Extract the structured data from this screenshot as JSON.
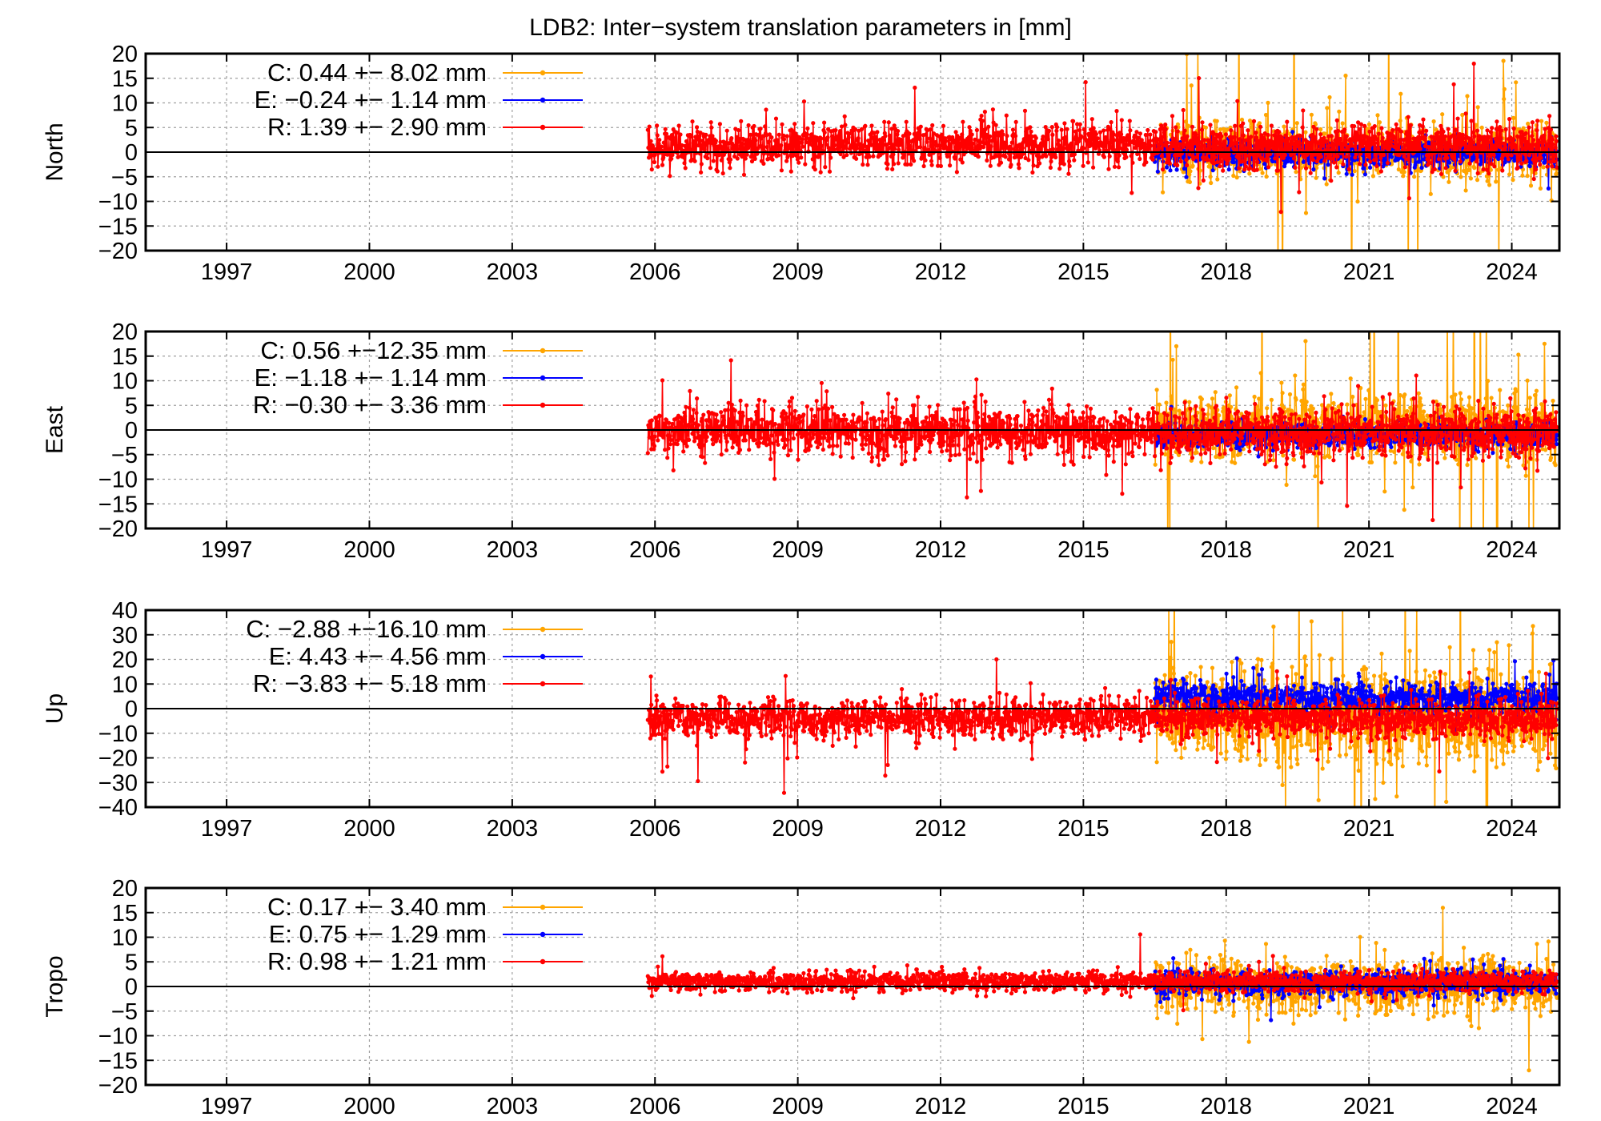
{
  "chart_data": {
    "type": "line",
    "title": "LDB2: Inter−system translation parameters in [mm]",
    "xlim": [
      1995.3,
      2025.0
    ],
    "xticks": [
      1997,
      2000,
      2003,
      2006,
      2009,
      2012,
      2015,
      2018,
      2021,
      2024
    ],
    "xtick_labels": [
      "1997",
      "2000",
      "2003",
      "2006",
      "2009",
      "2012",
      "2015",
      "2018",
      "2021",
      "2024"
    ],
    "grid": true,
    "colors": {
      "C": "#ffa500",
      "E": "#0000ff",
      "R": "#ff0000"
    },
    "panels": [
      {
        "ylabel": "North",
        "ylim": [
          -20,
          20
        ],
        "yticks": [
          20,
          15,
          10,
          5,
          0,
          -5,
          -10,
          -15,
          -20
        ],
        "ytick_labels": [
          "20",
          "15",
          "10",
          "5",
          "0",
          "−5",
          "−10",
          "−15",
          "−20"
        ],
        "legend": [
          {
            "label": "C:   0.44 +− 8.02 mm",
            "series": "C"
          },
          {
            "label": "E:  −0.24 +− 1.14 mm",
            "series": "E"
          },
          {
            "label": "R:   1.39 +− 2.90 mm",
            "series": "R"
          }
        ],
        "series": [
          {
            "name": "C",
            "start": 2016.5,
            "end": 2024.95,
            "mean": 0.44,
            "std": 8.02,
            "typical": 3.0,
            "seed": 11
          },
          {
            "name": "E",
            "start": 2016.5,
            "end": 2024.95,
            "mean": -0.24,
            "std": 1.14,
            "typical": 1.4,
            "seed": 12
          },
          {
            "name": "R",
            "start": 2005.85,
            "end": 2024.95,
            "mean": 1.39,
            "std": 2.9,
            "typical": 2.2,
            "seed": 13
          }
        ]
      },
      {
        "ylabel": "East",
        "ylim": [
          -20,
          20
        ],
        "yticks": [
          20,
          15,
          10,
          5,
          0,
          -5,
          -10,
          -15,
          -20
        ],
        "ytick_labels": [
          "20",
          "15",
          "10",
          "5",
          "0",
          "−5",
          "−10",
          "−15",
          "−20"
        ],
        "legend": [
          {
            "label": "C:   0.56 +−12.35 mm",
            "series": "C"
          },
          {
            "label": "E:  −1.18 +− 1.14 mm",
            "series": "E"
          },
          {
            "label": "R:  −0.30 +− 3.36 mm",
            "series": "R"
          }
        ],
        "series": [
          {
            "name": "C",
            "start": 2016.5,
            "end": 2024.95,
            "mean": 0.56,
            "std": 12.35,
            "typical": 3.5,
            "seed": 21
          },
          {
            "name": "E",
            "start": 2016.5,
            "end": 2024.95,
            "mean": -1.18,
            "std": 1.14,
            "typical": 1.3,
            "seed": 22
          },
          {
            "name": "R",
            "start": 2005.85,
            "end": 2024.95,
            "mean": -0.3,
            "std": 3.36,
            "typical": 2.6,
            "seed": 23
          }
        ]
      },
      {
        "ylabel": "Up",
        "ylim": [
          -40,
          40
        ],
        "yticks": [
          40,
          30,
          20,
          10,
          0,
          -10,
          -20,
          -30,
          -40
        ],
        "ytick_labels": [
          "40",
          "30",
          "20",
          "10",
          "0",
          "−10",
          "−20",
          "−30",
          "−40"
        ],
        "legend": [
          {
            "label": "C:  −2.88 +−16.10 mm",
            "series": "C"
          },
          {
            "label": "E:   4.43 +− 4.56 mm",
            "series": "E"
          },
          {
            "label": "R:  −3.83 +− 5.18 mm",
            "series": "R"
          }
        ],
        "series": [
          {
            "name": "C",
            "start": 2016.5,
            "end": 2024.95,
            "mean": -2.88,
            "std": 16.1,
            "typical": 10.0,
            "seed": 31
          },
          {
            "name": "E",
            "start": 2016.5,
            "end": 2024.95,
            "mean": 4.43,
            "std": 4.56,
            "typical": 3.2,
            "seed": 32
          },
          {
            "name": "R",
            "start": 2005.85,
            "end": 2024.95,
            "mean": -3.83,
            "std": 5.18,
            "typical": 4.0,
            "seed": 33
          }
        ]
      },
      {
        "ylabel": "Tropo",
        "ylim": [
          -20,
          20
        ],
        "yticks": [
          20,
          15,
          10,
          5,
          0,
          -5,
          -10,
          -15,
          -20
        ],
        "ytick_labels": [
          "20",
          "15",
          "10",
          "5",
          "0",
          "−5",
          "−10",
          "−15",
          "−20"
        ],
        "legend": [
          {
            "label": "C:   0.17 +− 3.40 mm",
            "series": "C"
          },
          {
            "label": "E:   0.75 +− 1.29 mm",
            "series": "E"
          },
          {
            "label": "R:   0.98 +− 1.21 mm",
            "series": "R"
          }
        ],
        "series": [
          {
            "name": "C",
            "start": 2016.5,
            "end": 2024.95,
            "mean": 0.17,
            "std": 3.4,
            "typical": 2.8,
            "seed": 41
          },
          {
            "name": "E",
            "start": 2016.5,
            "end": 2024.95,
            "mean": 0.75,
            "std": 1.29,
            "typical": 1.2,
            "seed": 42
          },
          {
            "name": "R",
            "start": 2005.85,
            "end": 2024.95,
            "mean": 0.98,
            "std": 1.21,
            "typical": 1.0,
            "seed": 43
          }
        ]
      }
    ]
  }
}
